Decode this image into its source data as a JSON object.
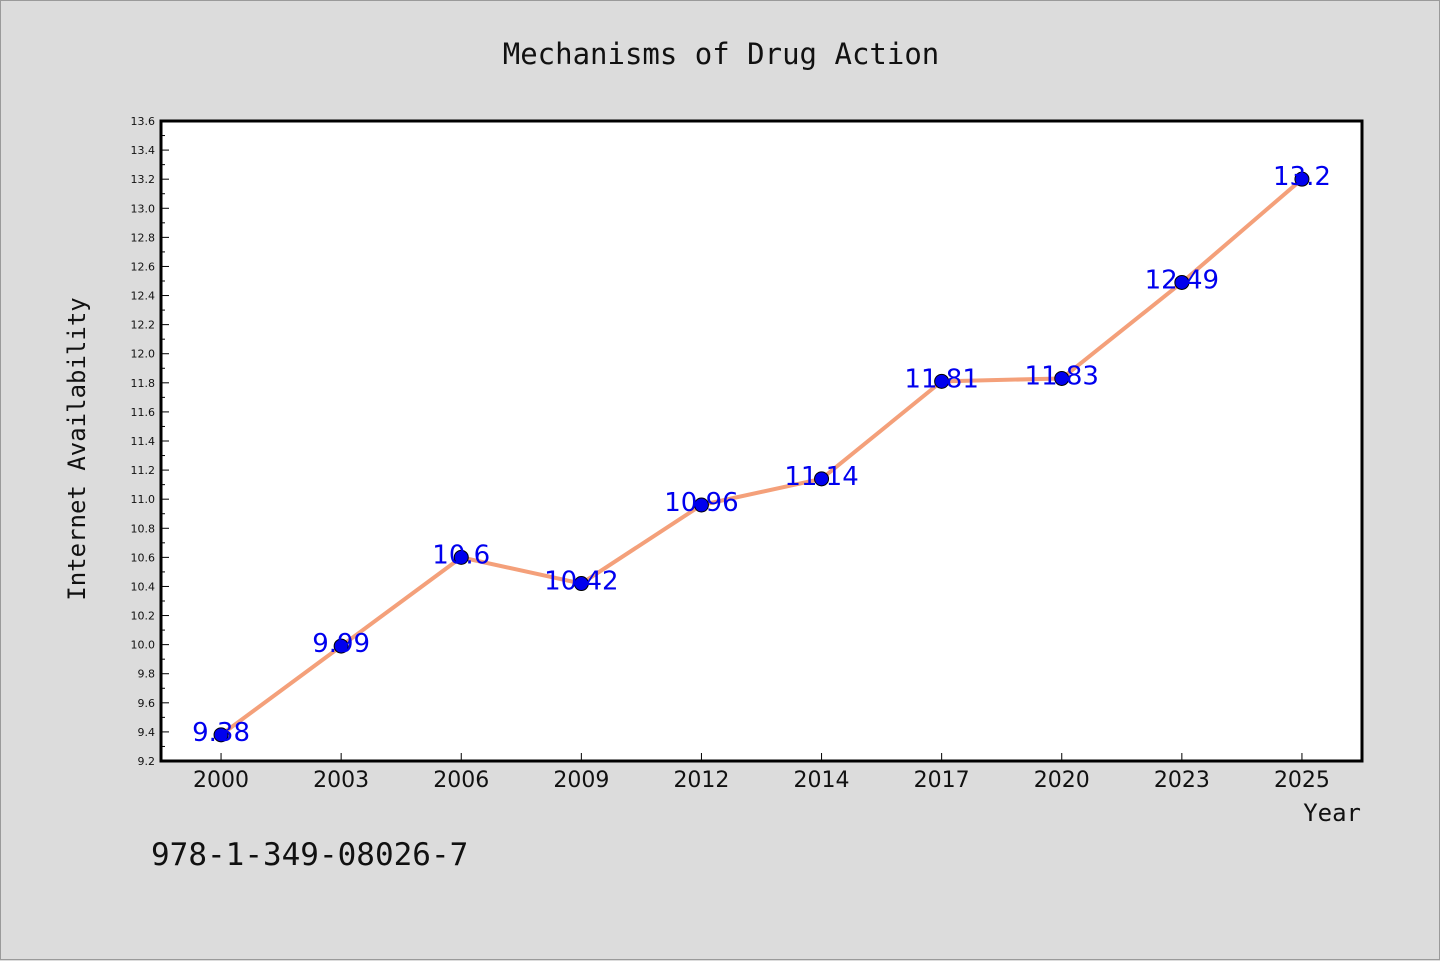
{
  "chart_data": {
    "type": "line",
    "title": "Mechanisms of Drug Action",
    "xlabel": "Year",
    "ylabel": "Internet Availability",
    "categories": [
      "2000",
      "2003",
      "2006",
      "2009",
      "2012",
      "2014",
      "2017",
      "2020",
      "2023",
      "2025"
    ],
    "series": [
      {
        "values": [
          9.38,
          9.99,
          10.6,
          10.42,
          10.96,
          11.14,
          11.81,
          11.83,
          12.49,
          13.2
        ],
        "data_labels": [
          "9.38",
          "9.99",
          "10.6",
          "10.42",
          "10.96",
          "11.14",
          "11.81",
          "11.83",
          "12.49",
          "13.2"
        ]
      }
    ],
    "ylim": [
      9.2,
      13.6
    ],
    "yticks": [
      "9.2",
      "9.4",
      "9.6",
      "9.8",
      "10.0",
      "10.2",
      "10.4",
      "10.6",
      "10.8",
      "11.0",
      "11.2",
      "11.4",
      "11.6",
      "11.8",
      "12.0",
      "12.2",
      "12.4",
      "12.6",
      "12.8",
      "13.0",
      "13.2",
      "13.4",
      "13.6"
    ],
    "grid": false,
    "legend": "none",
    "line_color": "#f4a07a",
    "marker_color": "#0000ee"
  },
  "footer": {
    "isbn": "978-1-349-08026-7"
  }
}
